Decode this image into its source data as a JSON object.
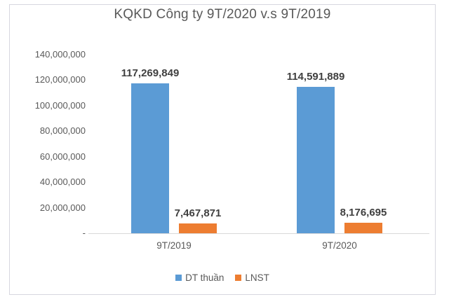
{
  "window": {
    "background": "#ffffff",
    "frame_border_color": "#d7d7df"
  },
  "chart_data": {
    "type": "bar",
    "title": "KQKD Công ty 9T/2020 v.s 9T/2019",
    "categories": [
      "9T/2019",
      "9T/2020"
    ],
    "series": [
      {
        "name": "DT thuần",
        "color": "#5B9BD5",
        "values": [
          117269849,
          114591889
        ],
        "value_labels": [
          "117,269,849",
          "114,591,889"
        ]
      },
      {
        "name": "LNST",
        "color": "#ED7D31",
        "values": [
          7467871,
          8176695
        ],
        "value_labels": [
          "7,467,871",
          "8,176,695"
        ]
      }
    ],
    "y_axis": {
      "min": 0,
      "max": 140000000,
      "tick_interval": 20000000,
      "ticks": [
        {
          "value": 140000000,
          "label": "140,000,000"
        },
        {
          "value": 120000000,
          "label": "120,000,000"
        },
        {
          "value": 100000000,
          "label": "100,000,000"
        },
        {
          "value": 80000000,
          "label": "80,000,000"
        },
        {
          "value": 60000000,
          "label": "60,000,000"
        },
        {
          "value": 40000000,
          "label": "40,000,000"
        },
        {
          "value": 20000000,
          "label": "20,000,000"
        },
        {
          "value": 0,
          "label": "-"
        }
      ]
    },
    "grid": false,
    "legend": {
      "position": "bottom",
      "items": [
        {
          "label": "DT thuần",
          "color": "#5B9BD5"
        },
        {
          "label": "LNST",
          "color": "#ED7D31"
        }
      ]
    },
    "styles": {
      "title_color": "#595959",
      "axis_label_color": "#595959",
      "data_label_color": "#404040",
      "axis_line_color": "#d9d9d9"
    }
  }
}
